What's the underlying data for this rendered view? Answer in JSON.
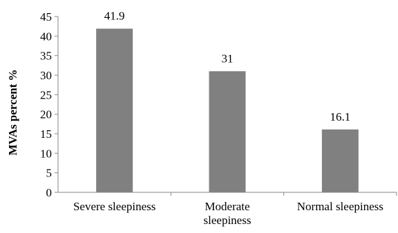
{
  "chart_data": {
    "type": "bar",
    "categories": [
      [
        "Severe sleepiness"
      ],
      [
        "Moderate",
        "sleepiness"
      ],
      [
        "Normal sleepiness"
      ]
    ],
    "values": [
      41.9,
      31,
      16.1
    ],
    "data_labels": [
      "41.9",
      "31",
      "16.1"
    ],
    "title": "",
    "xlabel": "",
    "ylabel": "MVAs percent %",
    "ylim": [
      0,
      45
    ],
    "yticks": [
      0,
      5,
      10,
      15,
      20,
      25,
      30,
      35,
      40,
      45
    ],
    "grid": false,
    "legend": "none",
    "bar_color": "#808080",
    "axis_color": "#868686"
  }
}
